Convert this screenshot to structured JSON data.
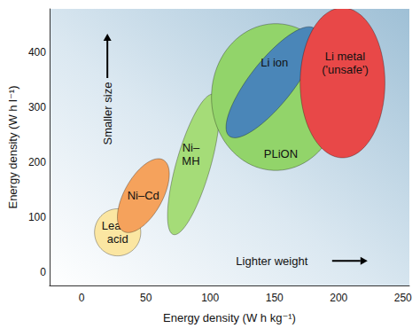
{
  "chart_data": {
    "type": "region",
    "x_label": "Energy density (W h kg⁻¹)",
    "y_label": "Energy density (W h l⁻¹)",
    "xlim": [
      -25,
      255
    ],
    "xticks": [
      0,
      50,
      100,
      150,
      200,
      250
    ],
    "ylim": [
      -25,
      480
    ],
    "yticks": [
      0,
      100,
      200,
      300,
      400
    ],
    "grid": false,
    "regions": [
      {
        "name": "Lead–\nacid",
        "color": "#fbe6a2",
        "center": [
          28,
          72
        ],
        "u": [
          18,
          0
        ],
        "v": [
          0,
          43
        ]
      },
      {
        "name": "Ni–Cd",
        "color": "#f5a25c",
        "center": [
          48,
          139
        ],
        "u": [
          15.7,
          65
        ],
        "v": [
          12.7,
          -18
        ]
      },
      {
        "name": "Ni–\nMH",
        "color": "#a5dc78",
        "center": [
          87,
          196
        ],
        "u": [
          15.7,
          128
        ],
        "v": [
          12.7,
          -9.3
        ],
        "label_pos": [
          85,
          215
        ]
      },
      {
        "name": "PLiON",
        "color": "#92d46a",
        "center": [
          151,
          319
        ],
        "u": [
          50,
          0
        ],
        "v": [
          0,
          134
        ],
        "label_pos": [
          155,
          216
        ]
      },
      {
        "name": "Li ion",
        "color": "#4a86b8",
        "center": [
          148,
          346
        ],
        "u": [
          33.3,
          98
        ],
        "v": [
          12.8,
          -26
        ],
        "label_pos": [
          150,
          382
        ]
      },
      {
        "name": "Li metal\n('unsafe')",
        "color": "#e84848",
        "center": [
          203,
          345
        ],
        "u": [
          33,
          0
        ],
        "v": [
          0,
          137
        ],
        "label_pos": [
          205,
          382
        ]
      }
    ],
    "annotations": [
      {
        "text": "Smaller size",
        "x": 20,
        "y": 289,
        "arrow": "up"
      },
      {
        "text": "Lighter weight",
        "x": 148,
        "y": 20,
        "arrow": "right"
      }
    ]
  }
}
